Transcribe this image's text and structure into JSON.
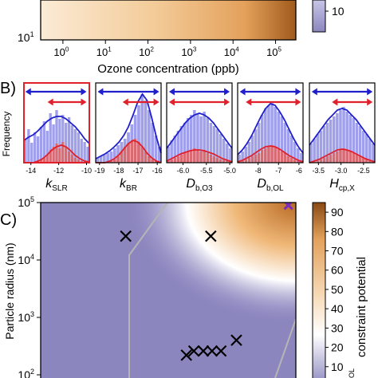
{
  "colors": {
    "purple": "#8C86BF",
    "white": "#FFFFFF",
    "orange_light": "#F6D9B5",
    "orange_mid": "#E8A765",
    "orange_dark": "#8A4A14",
    "blue": "#1F1FCC",
    "bar_blue": "#8E8EE8",
    "red": "#E0202A",
    "bar_red": "#E06464",
    "contour_gray": "#B5B5B5",
    "marker_purple": "#7A2DB8"
  },
  "chart_data": [
    {
      "panel": "A",
      "type": "heatmap",
      "xlabel": "Ozone concentration (ppb)",
      "xscale": "log",
      "xlim": [
        0.3,
        300000
      ],
      "xticks": [
        {
          "value": 1,
          "label": "10",
          "exp": "0"
        },
        {
          "value": 10,
          "label": "10",
          "exp": "1"
        },
        {
          "value": 100,
          "label": "10",
          "exp": "2"
        },
        {
          "value": 1000,
          "label": "10",
          "exp": "3"
        },
        {
          "value": 10000,
          "label": "10",
          "exp": "4"
        },
        {
          "value": 100000,
          "label": "10",
          "exp": "5"
        }
      ],
      "ytick_visible": {
        "label": "10",
        "exp": "1"
      },
      "colorbar_tick": "10"
    },
    {
      "panel": "B",
      "type": "bar",
      "panel_label": "B)",
      "ylabel": "Frequency",
      "subplots": [
        {
          "name": "kSLR",
          "xlabel_main": "k",
          "xlabel_sub": "SLR",
          "highlight": true,
          "xlim": [
            -14.5,
            -9.8
          ],
          "xticks": [
            "-14",
            "-12",
            "-10"
          ],
          "xtick_values": [
            -14,
            -12,
            -10
          ],
          "blue_arrow": [
            -14.4,
            -10.0
          ],
          "red_arrow": [
            -12.8,
            -10.0
          ],
          "blue_hist": [
            0.3,
            0.42,
            0.25,
            0.38,
            0.33,
            0.45,
            0.52,
            0.4,
            0.62,
            0.48,
            0.66,
            0.55,
            0.6,
            0.5,
            0.57,
            0.47,
            0.42,
            0.38,
            0.3,
            0.26,
            0.2
          ],
          "red_hist": [
            0,
            0,
            0,
            0,
            0.02,
            0.04,
            0.06,
            0.1,
            0.16,
            0.2,
            0.24,
            0.18,
            0.26,
            0.2,
            0.14,
            0.1,
            0.06,
            0.04,
            0.02,
            0,
            0
          ],
          "blue_curve": [
            0.28,
            0.32,
            0.35,
            0.4,
            0.46,
            0.52,
            0.56,
            0.58,
            0.58,
            0.55,
            0.5,
            0.45,
            0.38,
            0.3,
            0.24
          ],
          "red_curve": [
            0,
            0,
            0,
            0.02,
            0.05,
            0.1,
            0.16,
            0.2,
            0.22,
            0.2,
            0.15,
            0.09,
            0.05,
            0.02,
            0.01
          ]
        },
        {
          "name": "kBR",
          "xlabel_main": "k",
          "xlabel_sub": "BR",
          "highlight": false,
          "xlim": [
            -19.2,
            -15.8
          ],
          "xticks": [
            "-19",
            "-18",
            "-17",
            "-16"
          ],
          "xtick_values": [
            -19,
            -18,
            -17,
            -16
          ],
          "blue_arrow": [
            -19.1,
            -15.9
          ],
          "red_arrow": [
            -17.8,
            -15.9
          ],
          "blue_hist": [
            0.06,
            0.08,
            0.1,
            0.12,
            0.14,
            0.18,
            0.22,
            0.26,
            0.3,
            0.38,
            0.48,
            0.6,
            0.72,
            0.86,
            0.78,
            0.66,
            0.5,
            0.34,
            0.2
          ],
          "red_hist": [
            0,
            0,
            0,
            0,
            0.02,
            0.04,
            0.08,
            0.14,
            0.2,
            0.24,
            0.28,
            0.3,
            0.26,
            0.2,
            0.14,
            0.08,
            0.04,
            0.02,
            0
          ],
          "blue_curve": [
            0.05,
            0.08,
            0.11,
            0.15,
            0.2,
            0.26,
            0.34,
            0.45,
            0.6,
            0.76,
            0.86,
            0.78,
            0.56,
            0.32,
            0.12
          ],
          "red_curve": [
            0,
            0,
            0,
            0.02,
            0.05,
            0.1,
            0.17,
            0.24,
            0.28,
            0.26,
            0.2,
            0.12,
            0.06,
            0.02,
            0
          ]
        },
        {
          "name": "Db,O3",
          "xlabel_main": "D",
          "xlabel_sub": "b,O3",
          "highlight": false,
          "xlim": [
            -6.35,
            -4.95
          ],
          "xticks": [
            "-6.0",
            "-5.5",
            "-5.0"
          ],
          "xtick_values": [
            -6.0,
            -5.5,
            -5.0
          ],
          "blue_arrow": [
            -6.3,
            -5.0
          ],
          "red_arrow": [
            -6.3,
            -5.0
          ],
          "blue_hist": [
            0.2,
            0.28,
            0.34,
            0.4,
            0.46,
            0.5,
            0.56,
            0.6,
            0.66,
            0.62,
            0.58,
            0.64,
            0.56,
            0.5,
            0.46,
            0.42,
            0.36,
            0.3,
            0.24,
            0.18
          ],
          "red_hist": [
            0.02,
            0.04,
            0.06,
            0.08,
            0.1,
            0.12,
            0.14,
            0.16,
            0.18,
            0.16,
            0.14,
            0.16,
            0.12,
            0.1,
            0.08,
            0.06,
            0.04,
            0.03,
            0.02,
            0.01
          ],
          "blue_curve": [
            0.18,
            0.26,
            0.34,
            0.42,
            0.5,
            0.56,
            0.6,
            0.62,
            0.6,
            0.56,
            0.5,
            0.42,
            0.34,
            0.26,
            0.18
          ],
          "red_curve": [
            0.02,
            0.05,
            0.08,
            0.11,
            0.13,
            0.15,
            0.16,
            0.16,
            0.15,
            0.13,
            0.11,
            0.08,
            0.05,
            0.03,
            0.01
          ]
        },
        {
          "name": "Db,OL",
          "xlabel_main": "D",
          "xlabel_sub": "b,OL",
          "highlight": false,
          "xlim": [
            -9.0,
            -5.8
          ],
          "xticks": [
            "-8",
            "-7",
            "-6"
          ],
          "xtick_values": [
            -8,
            -7,
            -6
          ],
          "blue_arrow": [
            -8.9,
            -5.9
          ],
          "red_arrow": [
            -8.6,
            -5.9
          ],
          "blue_hist": [
            0.1,
            0.14,
            0.2,
            0.26,
            0.34,
            0.42,
            0.5,
            0.6,
            0.68,
            0.72,
            0.76,
            0.7,
            0.64,
            0.58,
            0.5,
            0.42,
            0.34,
            0.26,
            0.18,
            0.12
          ],
          "red_hist": [
            0.01,
            0.02,
            0.04,
            0.06,
            0.08,
            0.1,
            0.12,
            0.16,
            0.18,
            0.2,
            0.22,
            0.2,
            0.18,
            0.14,
            0.12,
            0.08,
            0.06,
            0.04,
            0.02,
            0.01
          ],
          "blue_curve": [
            0.1,
            0.16,
            0.24,
            0.34,
            0.46,
            0.58,
            0.68,
            0.74,
            0.72,
            0.64,
            0.54,
            0.42,
            0.3,
            0.2,
            0.12
          ],
          "red_curve": [
            0.01,
            0.03,
            0.06,
            0.09,
            0.13,
            0.17,
            0.2,
            0.21,
            0.2,
            0.17,
            0.13,
            0.09,
            0.06,
            0.03,
            0.01
          ]
        },
        {
          "name": "Hcp,X",
          "xlabel_main": "H",
          "xlabel_sub": "cp,X",
          "highlight": false,
          "xlim": [
            -3.7,
            -2.25
          ],
          "xticks": [
            "-3.5",
            "-3.0",
            "-2.5"
          ],
          "xtick_values": [
            -3.5,
            -3.0,
            -2.5
          ],
          "blue_arrow": [
            -3.65,
            -2.3
          ],
          "red_arrow": [
            -3.2,
            -2.3
          ],
          "blue_hist": [
            0.24,
            0.3,
            0.36,
            0.4,
            0.46,
            0.5,
            0.54,
            0.58,
            0.62,
            0.66,
            0.7,
            0.64,
            0.6,
            0.56,
            0.5,
            0.46,
            0.4,
            0.36,
            0.3,
            0.24
          ],
          "red_hist": [
            0,
            0.01,
            0.02,
            0.04,
            0.06,
            0.08,
            0.1,
            0.12,
            0.14,
            0.16,
            0.18,
            0.16,
            0.14,
            0.12,
            0.1,
            0.08,
            0.06,
            0.04,
            0.02,
            0.01
          ],
          "blue_curve": [
            0.22,
            0.3,
            0.38,
            0.46,
            0.54,
            0.6,
            0.66,
            0.68,
            0.66,
            0.6,
            0.54,
            0.46,
            0.38,
            0.3,
            0.22
          ],
          "red_curve": [
            0,
            0.02,
            0.04,
            0.07,
            0.1,
            0.13,
            0.16,
            0.17,
            0.16,
            0.14,
            0.11,
            0.08,
            0.05,
            0.03,
            0.01
          ]
        }
      ]
    },
    {
      "panel": "C",
      "type": "heatmap",
      "panel_label": "C)",
      "ylabel": "Particle radius (nm)",
      "yscale": "log",
      "ylim": [
        100,
        100000
      ],
      "yticks": [
        {
          "value": 100000,
          "label": "10",
          "exp": "5"
        },
        {
          "value": 10000,
          "label": "10",
          "exp": "4"
        },
        {
          "value": 1000,
          "label": "10",
          "exp": "3"
        },
        {
          "value": 100,
          "label": "10",
          "exp": "2"
        }
      ],
      "xlim": [
        0.3,
        300000
      ],
      "xscale": "log",
      "markers": [
        {
          "x": 30,
          "y": 26000
        },
        {
          "x": 3000,
          "y": 26000
        },
        {
          "x": 12000,
          "y": 400
        },
        {
          "x": 800,
          "y": 220
        },
        {
          "x": 1200,
          "y": 260
        },
        {
          "x": 2000,
          "y": 260
        },
        {
          "x": 3200,
          "y": 260
        },
        {
          "x": 5200,
          "y": 260
        }
      ],
      "optimum_marker": {
        "x": 200000,
        "y": 90000
      },
      "colorbar_label": "constraint potential",
      "colorbar_label_partial": "OL",
      "colorbar_range": [
        0,
        95
      ],
      "colorbar_ticks": [
        "90",
        "80",
        "70",
        "60",
        "50",
        "40",
        "30",
        "20",
        "10"
      ],
      "colorbar_tick_values": [
        90,
        80,
        70,
        60,
        50,
        40,
        30,
        20,
        10
      ]
    }
  ]
}
